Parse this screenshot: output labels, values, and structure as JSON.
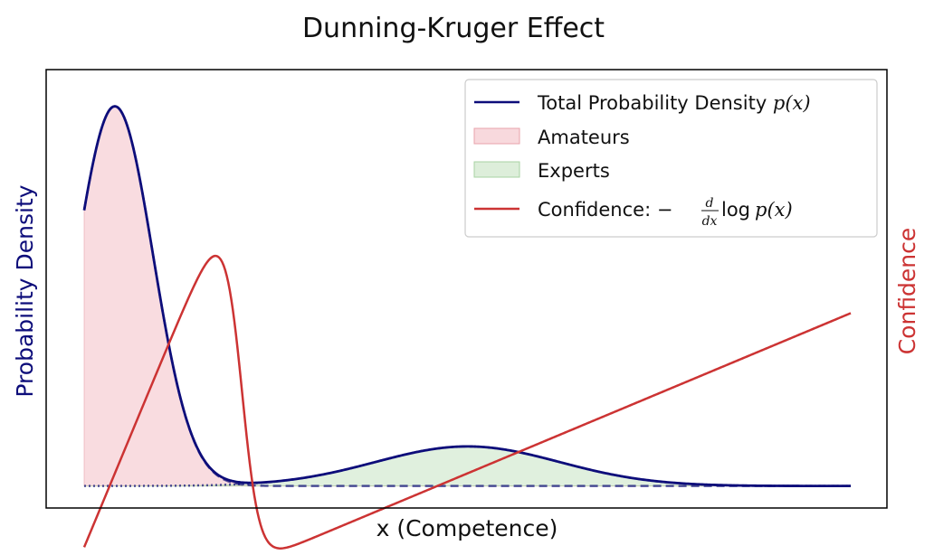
{
  "chart_data": {
    "type": "line",
    "title": "Dunning-Kruger Effect",
    "xlabel": "x (Competence)",
    "ylabel_left": "Probability Density",
    "ylabel_right": "Confidence",
    "ticks_visible": false,
    "grid": false,
    "legend_position": "top-right",
    "colors": {
      "density": "#0d0d7a",
      "amateurs_fill": "#f4c0c6",
      "experts_fill": "#c6e3c2",
      "confidence": "#cc3333"
    },
    "legend": {
      "density_prefix": "Total Probability Density ",
      "density_math": "p(x)",
      "amateurs": "Amateurs",
      "experts": "Experts",
      "confidence_prefix": "Confidence: −",
      "confidence_frac_num": "d",
      "confidence_frac_den": "dx",
      "confidence_tail": "log",
      "confidence_math": "p(x)"
    },
    "model": {
      "x_range": [
        0,
        10
      ],
      "amateurs": {
        "weight": 0.8,
        "mean": 0.4,
        "sd": 0.5
      },
      "experts": {
        "weight": 0.2,
        "mean": 5.0,
        "sd": 1.2
      }
    },
    "y_left_range": [
      -0.037,
      0.7
    ],
    "y_right_range": [
      -0.75,
      8.75
    ]
  }
}
